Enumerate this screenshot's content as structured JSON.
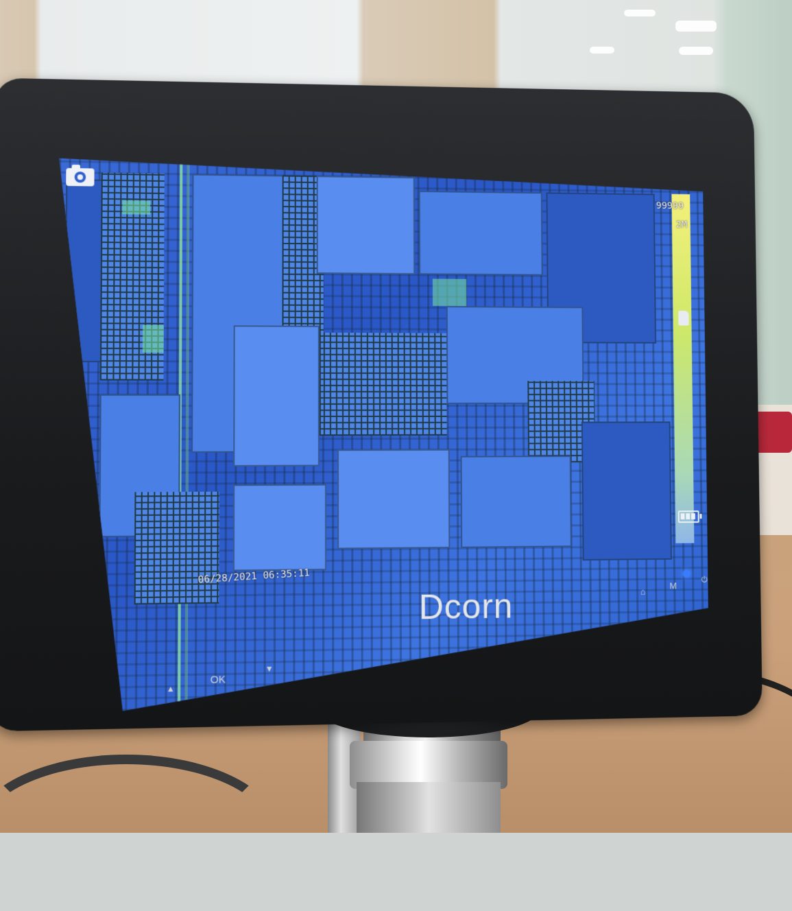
{
  "screen": {
    "counter": "99999",
    "resolution": "2M",
    "datetime": "06/28/2021 06:35:11",
    "icons": {
      "mode": "camera-icon",
      "storage": "sd-card-icon",
      "battery": "battery-icon"
    },
    "battery_level": 1.0
  },
  "device": {
    "brand": "Dcorn",
    "buttons": {
      "up": "▲",
      "ok": "OK",
      "down": "▼",
      "home": "⌂",
      "menu": "M",
      "power": "⏻"
    }
  },
  "colors": {
    "screen_blue": "#2f63d2",
    "bezel": "#1c1d1f",
    "led_blue": "#3a7bff"
  }
}
